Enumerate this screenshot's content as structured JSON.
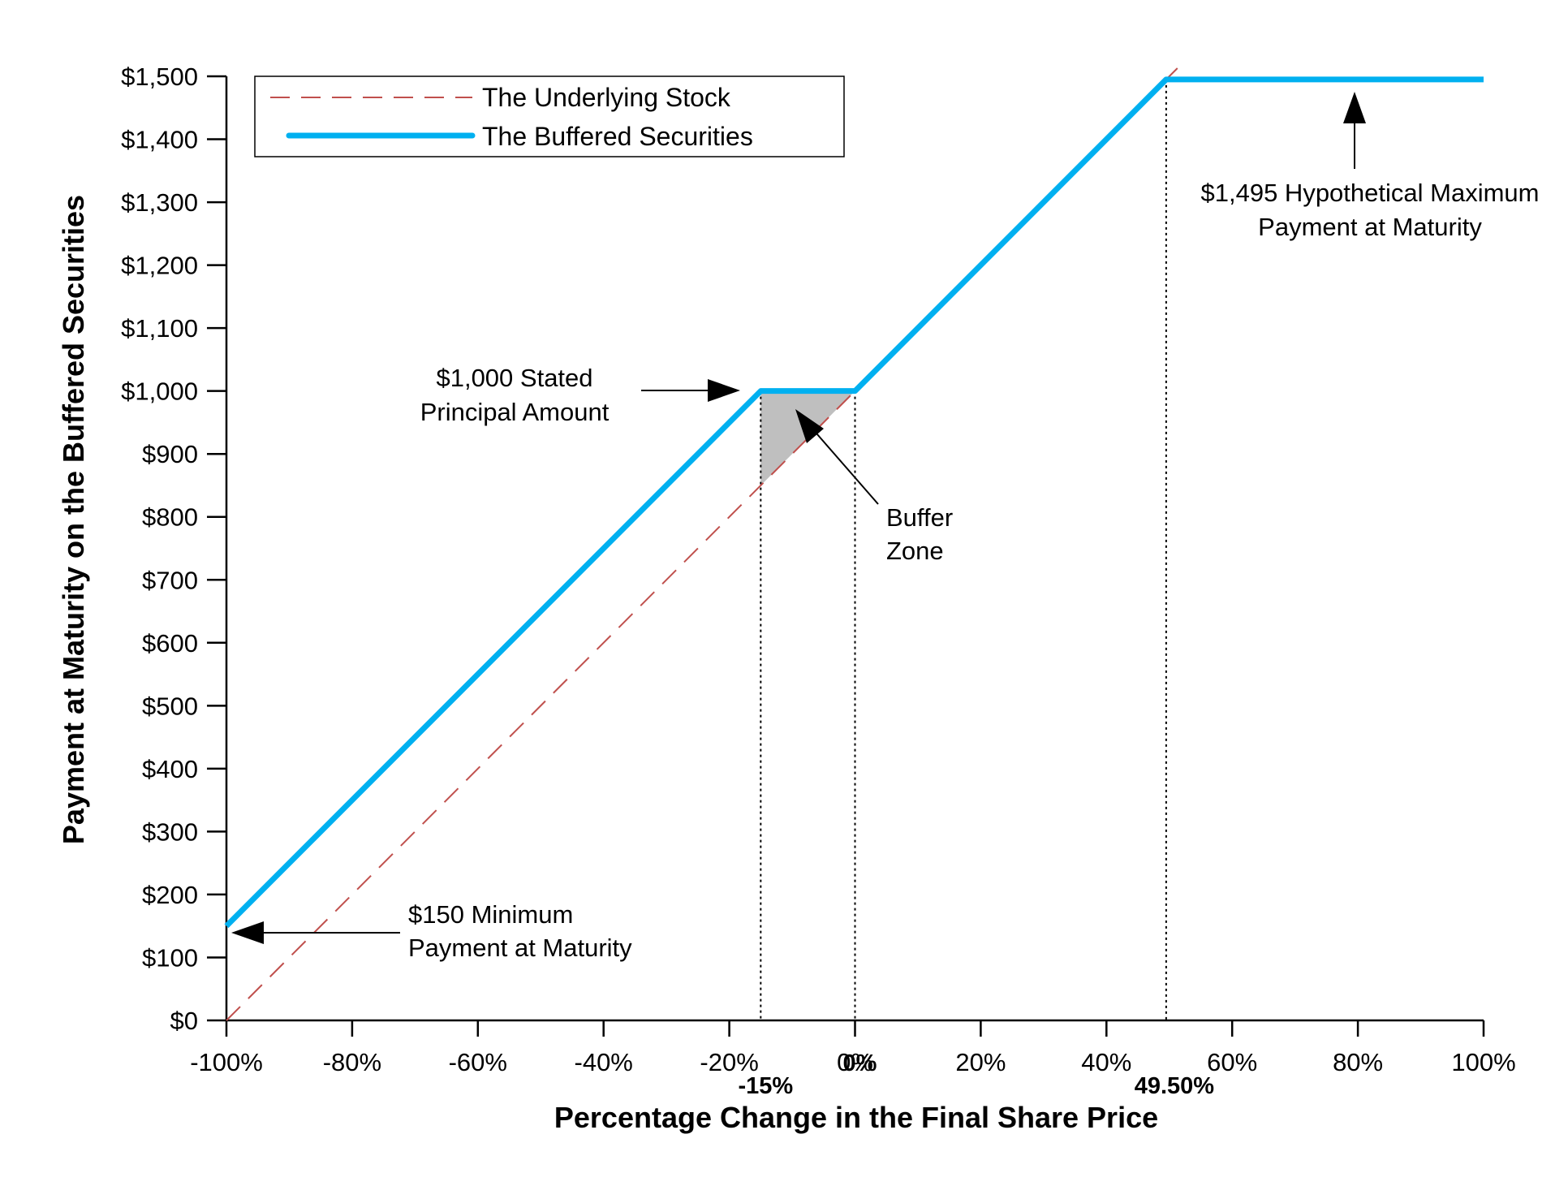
{
  "chart_data": {
    "type": "line",
    "title": "",
    "xlabel": "Percentage Change in the Final Share Price",
    "ylabel": "Payment at Maturity on the Buffered Securities",
    "xlim": [
      -100,
      100
    ],
    "ylim": [
      0,
      1500
    ],
    "x_ticks": [
      -100,
      -80,
      -60,
      -40,
      -20,
      0,
      20,
      40,
      60,
      80,
      100
    ],
    "x_tick_labels": [
      "-100%",
      "-80%",
      "-60%",
      "-40%",
      "-20%",
      "0%",
      "20%",
      "40%",
      "60%",
      "80%",
      "100%"
    ],
    "y_ticks": [
      0,
      100,
      200,
      300,
      400,
      500,
      600,
      700,
      800,
      900,
      1000,
      1100,
      1200,
      1300,
      1400,
      1500
    ],
    "y_tick_labels": [
      "$0",
      "$100",
      "$200",
      "$300",
      "$400",
      "$500",
      "$600",
      "$700",
      "$800",
      "$900",
      "$1,000",
      "$1,100",
      "$1,200",
      "$1,300",
      "$1,400",
      "$1,500"
    ],
    "extra_x_markers": [
      {
        "x": -15,
        "label": "-15%"
      },
      {
        "x": 0,
        "label": "0%"
      },
      {
        "x": 49.5,
        "label": "49.50%"
      }
    ],
    "legend_position": "top-left",
    "grid": false,
    "series": [
      {
        "name": "The Underlying Stock",
        "color": "#c0504d",
        "style": "dashed",
        "x": [
          -100,
          52
        ],
        "y": [
          0,
          1520
        ]
      },
      {
        "name": "The Buffered Securities",
        "color": "#00b0f0",
        "style": "solid",
        "x": [
          -100,
          -15,
          0,
          49.5,
          100
        ],
        "y": [
          150,
          1000,
          1000,
          1495,
          1495
        ]
      }
    ],
    "buffer_zone": {
      "x": [
        -15,
        0
      ],
      "color": "#bfbfbf"
    },
    "annotations": [
      {
        "id": "principal",
        "lines": [
          "$1,000 Stated",
          "Principal Amount"
        ]
      },
      {
        "id": "buffer",
        "lines": [
          "Buffer",
          "Zone"
        ]
      },
      {
        "id": "maximum",
        "lines": [
          "$1,495 Hypothetical Maximum",
          "Payment at Maturity"
        ]
      },
      {
        "id": "minimum",
        "lines": [
          "$150 Minimum",
          "Payment at Maturity"
        ]
      }
    ]
  }
}
